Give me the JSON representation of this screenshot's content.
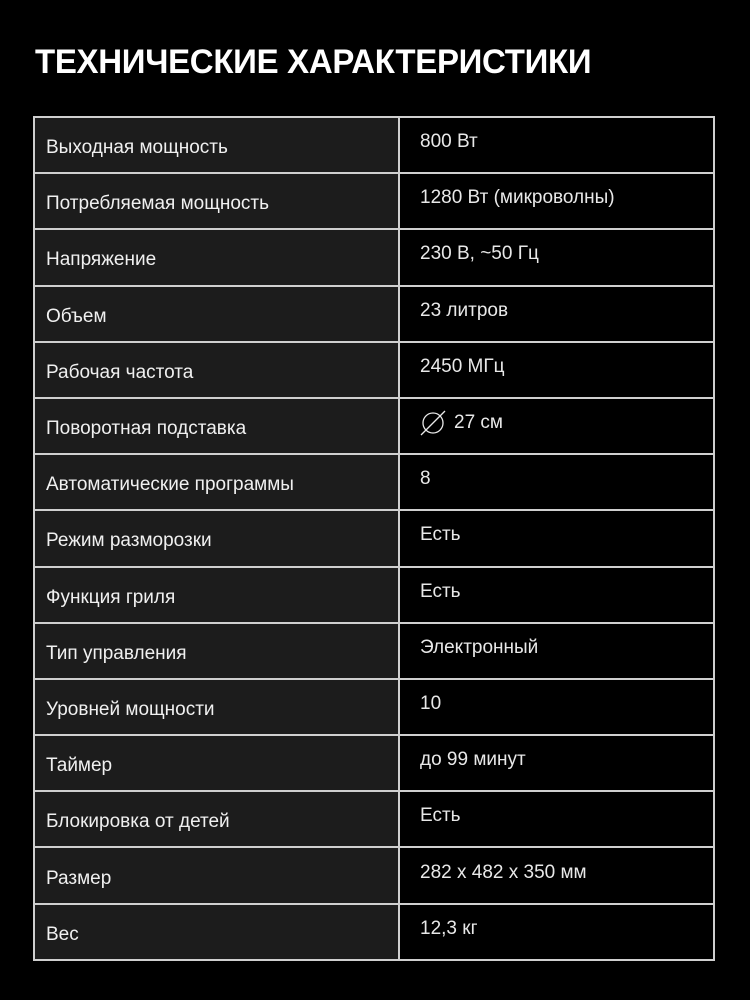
{
  "title": "ТЕХНИЧЕСКИЕ ХАРАКТЕРИСТИКИ",
  "specs": [
    {
      "label": "Выходная мощность",
      "value": "800 Вт"
    },
    {
      "label": "Потребляемая мощность",
      "value": "1280 Вт (микроволны)"
    },
    {
      "label": "Напряжение",
      "value": "230 В, ~50 Гц"
    },
    {
      "label": "Объем",
      "value": "23 литров"
    },
    {
      "label": "Рабочая частота",
      "value": "2450 МГц"
    },
    {
      "label": "Поворотная подставка",
      "value": "27 см",
      "icon": "diameter-icon"
    },
    {
      "label": "Автоматические программы",
      "value": "8"
    },
    {
      "label": "Режим разморозки",
      "value": "Есть"
    },
    {
      "label": "Функция гриля",
      "value": "Есть"
    },
    {
      "label": "Тип управления",
      "value": "Электронный"
    },
    {
      "label": "Уровней мощности",
      "value": "10"
    },
    {
      "label": "Таймер",
      "value": "до 99 минут"
    },
    {
      "label": "Блокировка от детей",
      "value": "Есть"
    },
    {
      "label": "Размер",
      "value": "282 x 482 x 350 мм"
    },
    {
      "label": "Вес",
      "value": "12,3 кг"
    }
  ]
}
